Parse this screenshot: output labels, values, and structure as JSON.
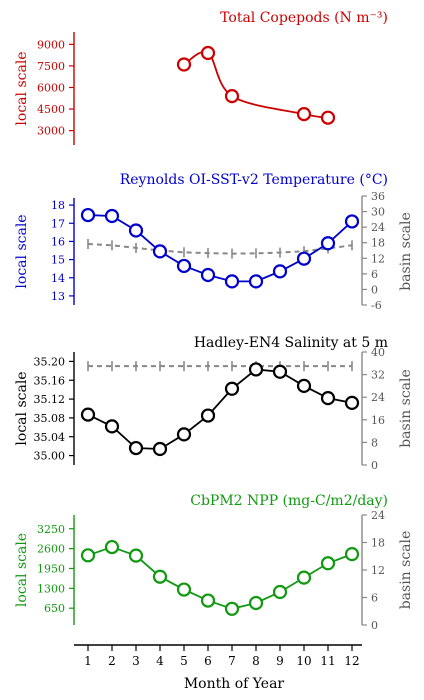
{
  "xlabel": "Month of Year",
  "x_ticks": [
    "1",
    "2",
    "3",
    "4",
    "5",
    "6",
    "7",
    "8",
    "9",
    "10",
    "11",
    "12"
  ],
  "chart_data": [
    {
      "type": "line",
      "title": "Total Copepods (N m⁻³)",
      "color": "#cc0000",
      "ylabel": "local scale",
      "ylim": [
        2000,
        10000
      ],
      "yticks": [
        3000,
        4500,
        6000,
        7500,
        9000
      ],
      "ytick_labels": [
        "3000",
        "4500",
        "6000",
        "7500",
        "9000"
      ],
      "x": [
        5,
        6,
        7,
        10,
        11
      ],
      "values": [
        7600,
        8400,
        5400,
        4150,
        3900
      ],
      "basin": null
    },
    {
      "type": "line",
      "title": "Reynolds OI-SST-v2 Temperature (°C)",
      "color": "#0000cc",
      "ylabel": "local scale",
      "ylim": [
        12.5,
        18.5
      ],
      "yticks": [
        13,
        14,
        15,
        16,
        17,
        18
      ],
      "ytick_labels": [
        "13",
        "14",
        "15",
        "16",
        "17",
        "18"
      ],
      "x": [
        1,
        2,
        3,
        4,
        5,
        6,
        7,
        8,
        9,
        10,
        11,
        12
      ],
      "values": [
        17.45,
        17.4,
        16.6,
        15.45,
        14.65,
        14.15,
        13.8,
        13.8,
        14.35,
        15.05,
        15.9,
        17.1
      ],
      "basin": {
        "ylabel": "basin scale",
        "ylim": [
          -6,
          36
        ],
        "yticks": [
          -6,
          0,
          6,
          12,
          18,
          24,
          30,
          36
        ],
        "ytick_labels": [
          "-6",
          "0",
          "6",
          "12",
          "18",
          "24",
          "30",
          "36"
        ],
        "x": [
          1,
          2,
          3,
          4,
          5,
          6,
          7,
          8,
          9,
          10,
          11,
          12
        ],
        "values": [
          17.5,
          17.0,
          16.0,
          15.0,
          14.3,
          14.0,
          13.8,
          13.9,
          14.2,
          14.7,
          15.8,
          17.0
        ],
        "color": "#888888"
      }
    },
    {
      "type": "line",
      "title": "Hadley-EN4 Salinity at 5 m",
      "color": "#000000",
      "ylabel": "local scale",
      "ylim": [
        34.98,
        35.22
      ],
      "yticks": [
        35.0,
        35.04,
        35.08,
        35.12,
        35.16,
        35.2
      ],
      "ytick_labels": [
        "35.00",
        "35.04",
        "35.08",
        "35.12",
        "35.16",
        "35.20"
      ],
      "x": [
        1,
        2,
        3,
        4,
        5,
        6,
        7,
        8,
        9,
        10,
        11,
        12
      ],
      "values": [
        35.087,
        35.062,
        35.016,
        35.014,
        35.045,
        35.085,
        35.142,
        35.183,
        35.178,
        35.148,
        35.122,
        35.112
      ],
      "basin": {
        "ylabel": "basin scale",
        "ylim": [
          0,
          40
        ],
        "yticks": [
          0,
          8,
          16,
          24,
          32,
          40
        ],
        "ytick_labels": [
          "0",
          "8",
          "16",
          "24",
          "32",
          "40"
        ],
        "x": [
          1,
          2,
          3,
          4,
          5,
          6,
          7,
          8,
          9,
          10,
          11,
          12
        ],
        "values": [
          35.0,
          35.0,
          35.0,
          35.0,
          35.0,
          35.0,
          35.0,
          35.0,
          35.0,
          35.0,
          35.0,
          35.0
        ],
        "color": "#888888"
      }
    },
    {
      "type": "line",
      "title": "CbPM2 NPP (mg-C/m2/day)",
      "color": "#119911",
      "ylabel": "local scale",
      "ylim": [
        100,
        3700
      ],
      "yticks": [
        650,
        1300,
        1950,
        2600,
        3250
      ],
      "ytick_labels": [
        "650",
        "1300",
        "1950",
        "2600",
        "3250"
      ],
      "x": [
        1,
        2,
        3,
        4,
        5,
        6,
        7,
        8,
        9,
        10,
        11,
        12
      ],
      "values": [
        2380,
        2650,
        2370,
        1680,
        1260,
        900,
        630,
        820,
        1180,
        1650,
        2120,
        2420
      ],
      "basin": {
        "ylabel": "basin scale",
        "ylim": [
          0,
          24
        ],
        "yticks": [
          0,
          6,
          12,
          18,
          24
        ],
        "ytick_labels": [
          "0",
          "6",
          "12",
          "18",
          "24"
        ],
        "x": [],
        "values": [],
        "color": "#888888"
      }
    }
  ]
}
